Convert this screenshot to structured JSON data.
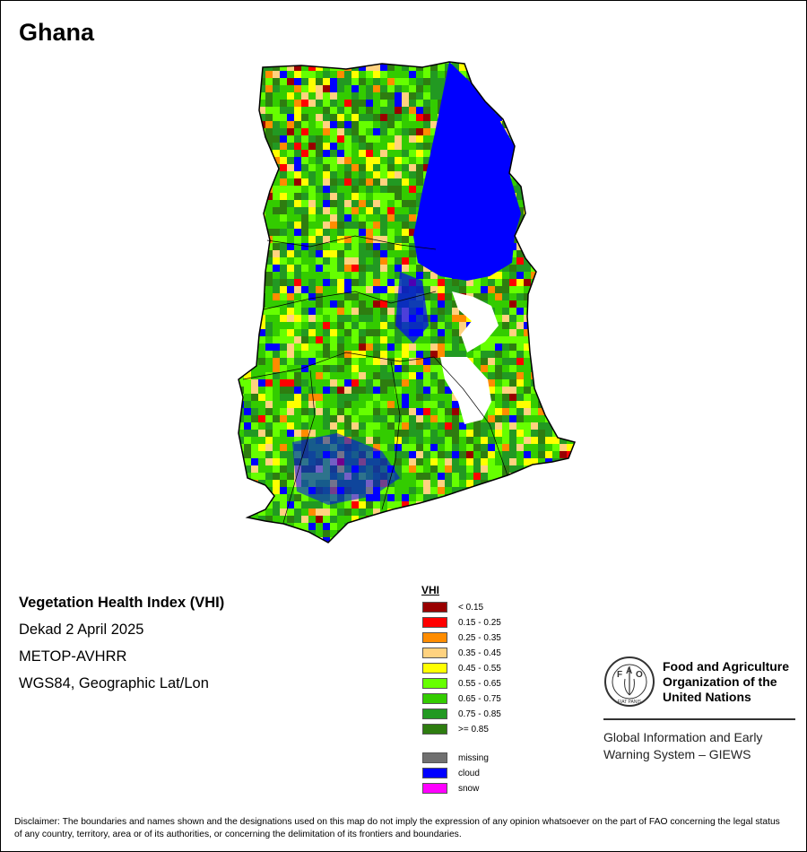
{
  "map": {
    "country": "Ghana"
  },
  "info": {
    "title": "Vegetation Health Index (VHI)",
    "period": "Dekad 2 April 2025",
    "sensor": "METOP-AVHRR",
    "projection": "WGS84, Geographic Lat/Lon"
  },
  "legend": {
    "title": "VHI",
    "classes": [
      {
        "label": "< 0.15",
        "color": "#990000"
      },
      {
        "label": "0.15 - 0.25",
        "color": "#ff0000"
      },
      {
        "label": "0.25 - 0.35",
        "color": "#ff8c00"
      },
      {
        "label": "0.35 - 0.45",
        "color": "#ffd27f"
      },
      {
        "label": "0.45 - 0.55",
        "color": "#ffff00"
      },
      {
        "label": "0.55 - 0.65",
        "color": "#66ff00"
      },
      {
        "label": "0.65 - 0.75",
        "color": "#33cc00"
      },
      {
        "label": "0.75 - 0.85",
        "color": "#229922"
      },
      {
        "label": ">= 0.85",
        "color": "#2e7d10"
      }
    ],
    "other": [
      {
        "label": "missing",
        "color": "#707070"
      },
      {
        "label": "cloud",
        "color": "#0000ff"
      },
      {
        "label": "snow",
        "color": "#ff00ff"
      }
    ]
  },
  "organization": {
    "emblem_icon": "fao-emblem-icon",
    "emblem_letters": [
      "F",
      "A",
      "O"
    ],
    "emblem_motto": "FIAT PANIS",
    "name": "Food and Agriculture\nOrganization of the\nUnited Nations",
    "program": "Global Information and Early\nWarning System – GIEWS"
  },
  "disclaimer": "Disclaimer: The boundaries and names shown and the designations used on this map do not imply the expression of any opinion whatsoever on the part of FAO concerning the legal status of any country, territory, area or of its authorities, or concerning the delimitation of its frontiers and boundaries."
}
